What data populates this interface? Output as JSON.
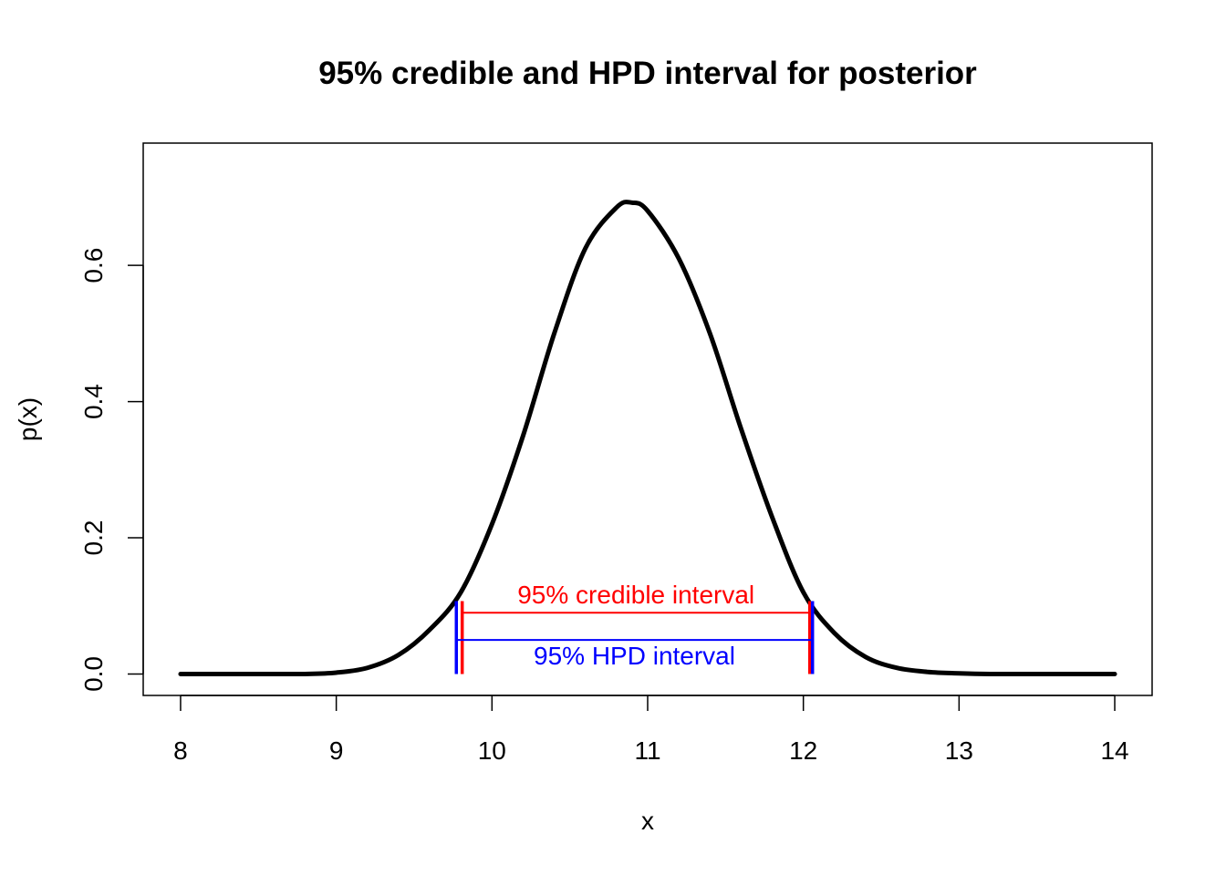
{
  "chart_data": {
    "type": "line",
    "title": "95% credible and HPD interval for posterior",
    "xlabel": "x",
    "ylabel": "p(x)",
    "xlim": [
      7.76,
      14.24
    ],
    "ylim": [
      -0.0315,
      0.7795
    ],
    "x_ticks": [
      8,
      9,
      10,
      11,
      12,
      13,
      14
    ],
    "x_tick_labels": [
      "8",
      "9",
      "10",
      "11",
      "12",
      "13",
      "14"
    ],
    "y_ticks": [
      0.0,
      0.2,
      0.4,
      0.6
    ],
    "y_tick_labels": [
      "0.0",
      "0.2",
      "0.4",
      "0.6"
    ],
    "grid": false,
    "series": [
      {
        "color": "#000000",
        "x": [
          8.0,
          8.2,
          8.4,
          8.6,
          8.8,
          9.0,
          9.2,
          9.4,
          9.6,
          9.8,
          10.0,
          10.2,
          10.4,
          10.6,
          10.8,
          10.9,
          11.0,
          11.2,
          11.4,
          11.6,
          11.8,
          12.0,
          12.2,
          12.4,
          12.6,
          12.8,
          13.0,
          13.2,
          13.4,
          13.6,
          13.8,
          14.0
        ],
        "y": [
          0.0,
          0.0,
          0.0,
          0.0,
          0.0,
          0.002,
          0.009,
          0.028,
          0.065,
          0.12,
          0.22,
          0.35,
          0.5,
          0.625,
          0.685,
          0.692,
          0.68,
          0.61,
          0.5,
          0.36,
          0.23,
          0.12,
          0.06,
          0.025,
          0.009,
          0.003,
          0.001,
          0.0,
          0.0,
          0.0,
          0.0,
          0.0
        ]
      }
    ],
    "intervals": [
      {
        "label": "95% credible interval",
        "color": "#ff0000",
        "lower": 9.8,
        "upper": 12.05,
        "y": 0.09
      },
      {
        "label": "95% HPD interval",
        "color": "#0000ff",
        "lower": 9.78,
        "upper": 12.05,
        "y": 0.05
      }
    ]
  }
}
